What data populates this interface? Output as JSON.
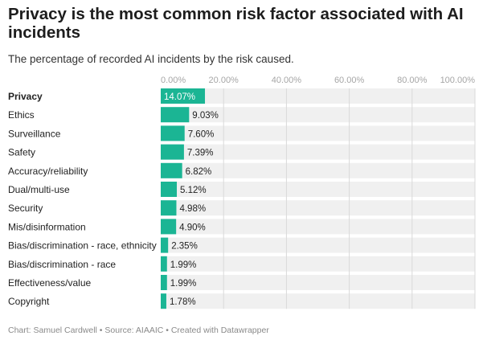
{
  "title": "Privacy is the most common risk factor associated with AI incidents",
  "subtitle": "The percentage of recorded AI incidents by the risk caused.",
  "notes": "Chart: Samuel Cardwell • Source: AIAAIC • Created with Datawrapper",
  "colors": {
    "bar": "#1bb594",
    "track": "#f0f0f0",
    "grid": "#d9d9d9",
    "axis_text": "#a6a6a6",
    "label_text": "#222222"
  },
  "chart_data": {
    "type": "bar",
    "orientation": "horizontal",
    "title": "Privacy is the most common risk factor associated with AI incidents",
    "subtitle": "The percentage of recorded AI incidents by the risk caused.",
    "categories": [
      "Privacy",
      "Ethics",
      "Surveillance",
      "Safety",
      "Accuracy/reliability",
      "Dual/multi-use",
      "Security",
      "Mis/disinformation",
      "Bias/discrimination - race, ethnicity",
      "Bias/discrimination - race",
      "Effectiveness/value",
      "Copyright"
    ],
    "values": [
      14.07,
      9.03,
      7.6,
      7.39,
      6.82,
      5.12,
      4.98,
      4.9,
      2.35,
      1.99,
      1.99,
      1.78
    ],
    "value_labels": [
      "14.07%",
      "9.03%",
      "7.60%",
      "7.39%",
      "6.82%",
      "5.12%",
      "4.98%",
      "4.90%",
      "2.35%",
      "1.99%",
      "1.99%",
      "1.78%"
    ],
    "highlighted_category": "Privacy",
    "xlim": [
      0,
      100
    ],
    "xticks": [
      0,
      20,
      40,
      60,
      80,
      100
    ],
    "xtick_labels": [
      "0.00%",
      "20.00%",
      "40.00%",
      "60.00%",
      "80.00%",
      "100.00%"
    ],
    "axis_position": "top",
    "grid": true,
    "legend": false
  }
}
